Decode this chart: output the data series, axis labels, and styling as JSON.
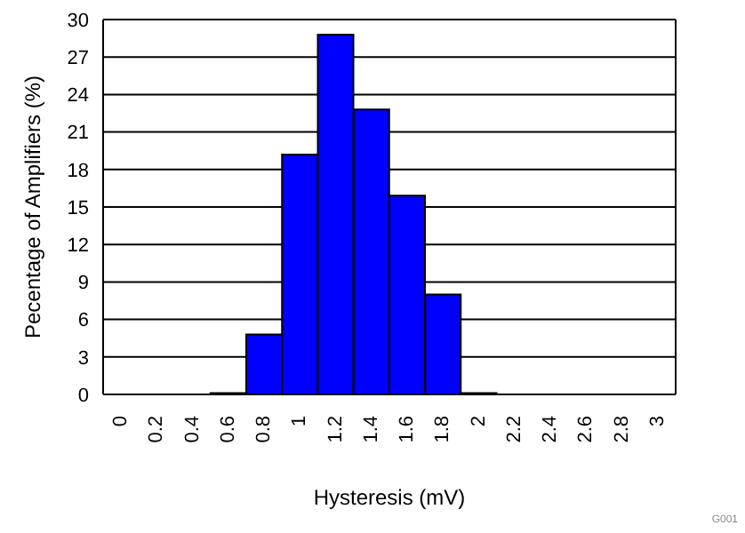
{
  "chart_data": {
    "type": "bar",
    "xlabel": "Hysteresis (mV)",
    "ylabel": "Pecentage of Amplifiers (%)",
    "categories": [
      "0",
      "0.2",
      "0.4",
      "0.6",
      "0.8",
      "1",
      "1.2",
      "1.4",
      "1.6",
      "1.8",
      "2",
      "2.2",
      "2.4",
      "2.6",
      "2.8",
      "3"
    ],
    "values": [
      0,
      0,
      0,
      0.1,
      4.8,
      19.2,
      28.8,
      22.8,
      15.9,
      8.0,
      0.1,
      0,
      0,
      0,
      0,
      0
    ],
    "color": "#0000ff",
    "ylim": [
      0,
      30
    ],
    "yticks": [
      0,
      3,
      6,
      9,
      12,
      15,
      18,
      21,
      24,
      27,
      30
    ],
    "grid": "y",
    "annotations": [
      "G001"
    ]
  }
}
